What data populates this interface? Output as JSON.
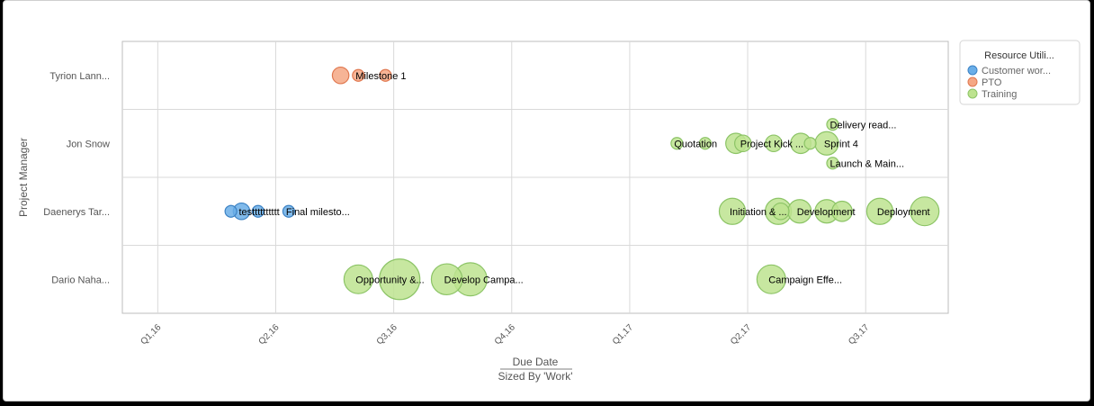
{
  "chart_data": {
    "type": "scatter",
    "xlabel": "Due Date",
    "xlabel_sub": "Sized By 'Work'",
    "ylabel": "Project Manager",
    "categories": [
      "Tyrion Lann...",
      "Jon Snow",
      "Daenerys Tar...",
      "Dario Naha..."
    ],
    "x_ticks": [
      "Q1,16",
      "Q2,16",
      "Q3,16",
      "Q4,16",
      "Q1,17",
      "Q2,17",
      "Q3,17"
    ],
    "x_range": [
      -0.3,
      6.7
    ],
    "grid": true,
    "legend": {
      "title": "Resource Utili...",
      "placement": "top-right",
      "items": [
        {
          "name": "Customer wor...",
          "color": "#6aaee8",
          "stroke": "#3c82c4"
        },
        {
          "name": "PTO",
          "color": "#f5a784",
          "stroke": "#e07850"
        },
        {
          "name": "Training",
          "color": "#bde38f",
          "stroke": "#8cc466"
        }
      ]
    },
    "points": [
      {
        "row": 0,
        "x": 1.55,
        "work": 2,
        "series": 1,
        "label": ""
      },
      {
        "row": 0,
        "x": 1.7,
        "work": 1,
        "series": 1,
        "label": "Milestone 1"
      },
      {
        "row": 0,
        "x": 1.93,
        "work": 1,
        "series": 1,
        "label": ""
      },
      {
        "row": 1,
        "x": 4.4,
        "work": 1,
        "series": 2,
        "label": "Quotation"
      },
      {
        "row": 1,
        "x": 4.64,
        "work": 1,
        "series": 2,
        "label": ""
      },
      {
        "row": 1,
        "x": 4.9,
        "work": 3,
        "series": 2,
        "label": ""
      },
      {
        "row": 1,
        "x": 4.96,
        "work": 2,
        "series": 2,
        "label": "Project Kick ..."
      },
      {
        "row": 1,
        "x": 5.22,
        "work": 2,
        "series": 2,
        "label": ""
      },
      {
        "row": 1,
        "x": 5.45,
        "work": 3,
        "series": 2,
        "label": ""
      },
      {
        "row": 1,
        "x": 5.53,
        "work": 1,
        "series": 2,
        "label": ""
      },
      {
        "row": 1,
        "x": 5.67,
        "work": 4,
        "series": 2,
        "label": "Sprint 4"
      },
      {
        "row": 1,
        "x": 5.72,
        "work": 1,
        "series": 2,
        "label": "Delivery read...",
        "dy": -21
      },
      {
        "row": 1,
        "x": 5.72,
        "work": 1,
        "series": 2,
        "label": "Launch & Main...",
        "dy": 22
      },
      {
        "row": 2,
        "x": 0.62,
        "work": 1,
        "series": 0,
        "label": ""
      },
      {
        "row": 2,
        "x": 0.71,
        "work": 2,
        "series": 0,
        "label": "testttttttttt"
      },
      {
        "row": 2,
        "x": 0.85,
        "work": 1,
        "series": 0,
        "label": ""
      },
      {
        "row": 2,
        "x": 1.11,
        "work": 1,
        "series": 0,
        "label": "Final milesto..."
      },
      {
        "row": 2,
        "x": 4.87,
        "work": 5,
        "series": 2,
        "label": "Initiation & ..."
      },
      {
        "row": 2,
        "x": 5.26,
        "work": 5,
        "series": 2,
        "label": ""
      },
      {
        "row": 2,
        "x": 5.28,
        "work": 2,
        "series": 2,
        "label": ""
      },
      {
        "row": 2,
        "x": 5.44,
        "work": 4,
        "series": 2,
        "label": "Development"
      },
      {
        "row": 2,
        "x": 5.67,
        "work": 4,
        "series": 2,
        "label": ""
      },
      {
        "row": 2,
        "x": 5.8,
        "work": 3,
        "series": 2,
        "label": ""
      },
      {
        "row": 2,
        "x": 6.12,
        "work": 5,
        "series": 2,
        "label": "Deployment"
      },
      {
        "row": 2,
        "x": 6.5,
        "work": 6,
        "series": 2,
        "label": ""
      },
      {
        "row": 3,
        "x": 1.7,
        "work": 6,
        "series": 2,
        "label": "Opportunity &..."
      },
      {
        "row": 3,
        "x": 2.05,
        "work": 12,
        "series": 2,
        "label": ""
      },
      {
        "row": 3,
        "x": 2.45,
        "work": 7,
        "series": 2,
        "label": "Develop Campa..."
      },
      {
        "row": 3,
        "x": 2.65,
        "work": 8,
        "series": 2,
        "label": ""
      },
      {
        "row": 3,
        "x": 5.2,
        "work": 6,
        "series": 2,
        "label": "Campaign Effe..."
      }
    ]
  }
}
